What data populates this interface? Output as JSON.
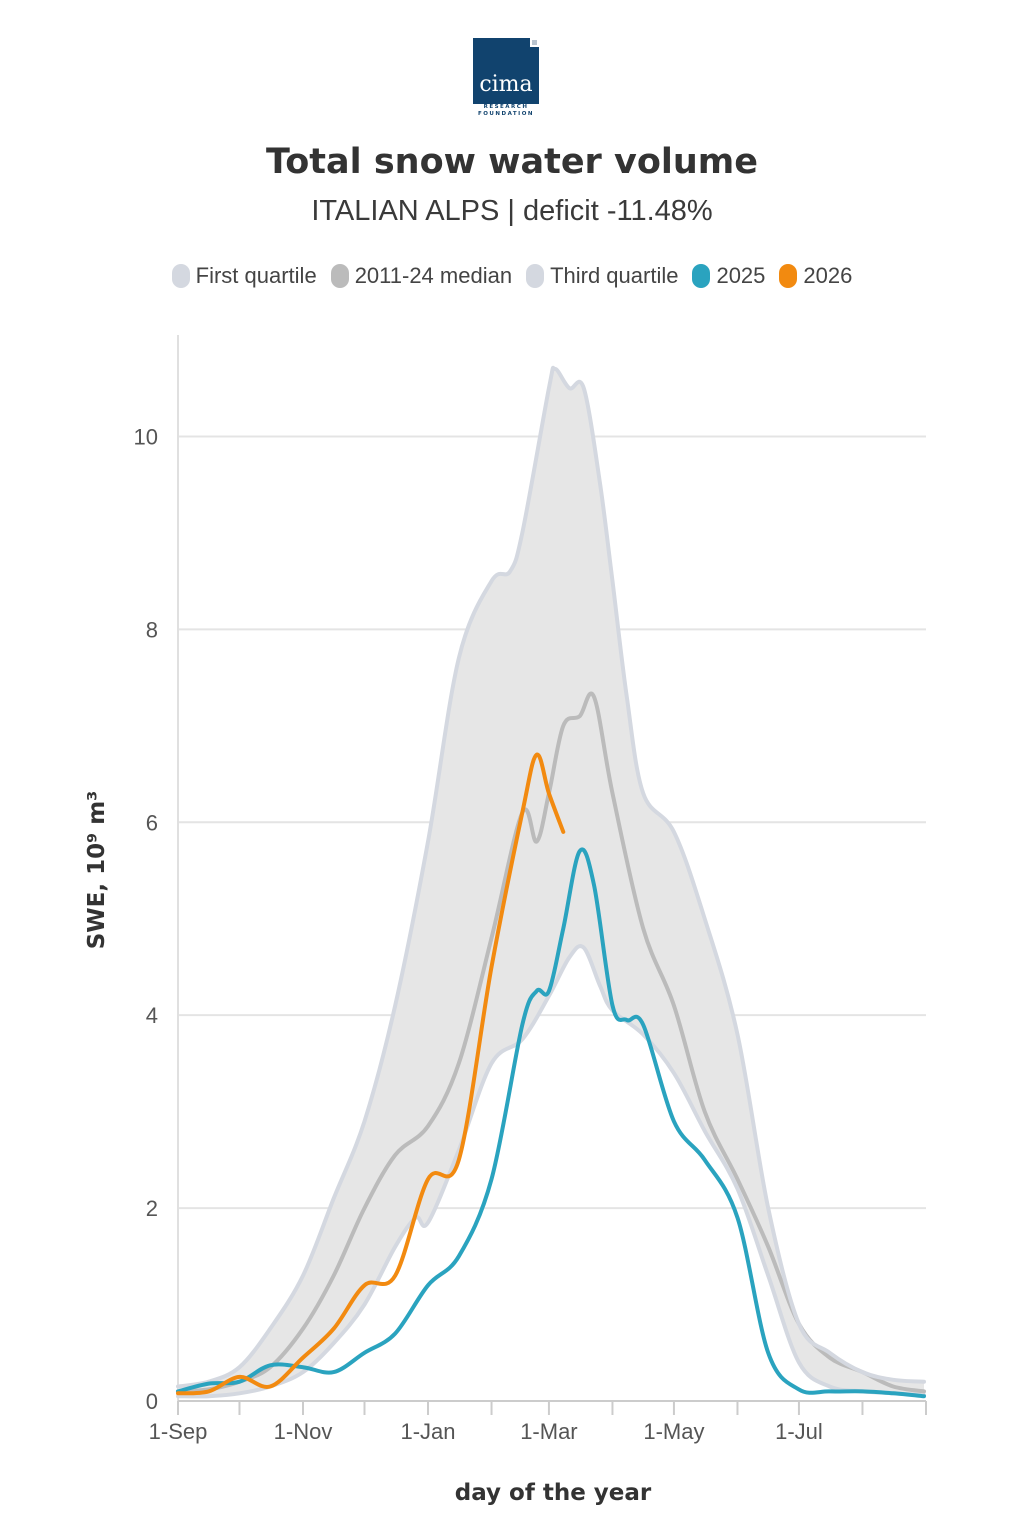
{
  "logo": {
    "brand": "cima",
    "sub": "RESEARCH\nFOUNDATION"
  },
  "header": {
    "title": "Total snow water volume",
    "subtitle": "ITALIAN ALPS | deficit -11.48%"
  },
  "colors": {
    "quartile": "#d4d8e0",
    "band": "#e6e6e6",
    "median": "#bbbbbb",
    "s2025": "#2aa3bf",
    "s2026": "#f28a10"
  },
  "legend": [
    {
      "label": "First quartile",
      "color": "#d4d8e0"
    },
    {
      "label": "2011-24 median",
      "color": "#bbbbbb"
    },
    {
      "label": "Third quartile",
      "color": "#d4d8e0"
    },
    {
      "label": "2025",
      "color": "#2aa3bf"
    },
    {
      "label": "2026",
      "color": "#f28a10"
    }
  ],
  "chart_data": {
    "type": "line",
    "title": "Total snow water volume",
    "subtitle": "ITALIAN ALPS | deficit -11.48%",
    "xlabel": "day of the year",
    "ylabel": "SWE, 10⁹ m³",
    "ylim": [
      0,
      11
    ],
    "yticks": [
      0,
      2,
      4,
      6,
      8,
      10
    ],
    "xlim": [
      "1-Sep",
      "31-Aug"
    ],
    "xticks": [
      "1-Sep",
      "1-Nov",
      "1-Jan",
      "1-Mar",
      "1-May",
      "1-Jul"
    ],
    "grid": true,
    "legend_position": "top",
    "series": [
      {
        "name": "First quartile",
        "x": [
          "1-Sep",
          "16-Sep",
          "1-Oct",
          "16-Oct",
          "1-Nov",
          "16-Nov",
          "1-Dec",
          "16-Dec",
          "26-Dec",
          "1-Jan",
          "16-Jan",
          "1-Feb",
          "16-Feb",
          "1-Mar",
          "11-Mar",
          "18-Mar",
          "26-Mar",
          "1-Apr",
          "16-Apr",
          "1-May",
          "16-May",
          "1-Jun",
          "16-Jun",
          "1-Jul",
          "16-Jul",
          "1-Aug",
          "16-Aug",
          "31-Aug"
        ],
        "values": [
          0.05,
          0.05,
          0.08,
          0.15,
          0.3,
          0.6,
          1.0,
          1.6,
          1.9,
          1.85,
          2.6,
          3.5,
          3.75,
          4.2,
          4.6,
          4.7,
          4.3,
          4.05,
          3.8,
          3.4,
          2.8,
          2.2,
          1.3,
          0.4,
          0.15,
          0.1,
          0.08,
          0.06
        ]
      },
      {
        "name": "2011-24 median",
        "x": [
          "1-Sep",
          "16-Sep",
          "1-Oct",
          "16-Oct",
          "1-Nov",
          "16-Nov",
          "1-Dec",
          "16-Dec",
          "1-Jan",
          "16-Jan",
          "1-Feb",
          "16-Feb",
          "23-Feb",
          "1-Mar",
          "8-Mar",
          "16-Mar",
          "23-Mar",
          "1-Apr",
          "16-Apr",
          "1-May",
          "16-May",
          "1-Jun",
          "16-Jun",
          "1-Jul",
          "16-Jul",
          "1-Aug",
          "16-Aug",
          "31-Aug"
        ],
        "values": [
          0.1,
          0.12,
          0.2,
          0.35,
          0.75,
          1.3,
          2.0,
          2.55,
          2.85,
          3.5,
          4.8,
          6.1,
          5.8,
          6.3,
          7.0,
          7.1,
          7.3,
          6.3,
          4.9,
          4.1,
          3.0,
          2.3,
          1.6,
          0.8,
          0.45,
          0.3,
          0.15,
          0.1
        ]
      },
      {
        "name": "Third quartile",
        "x": [
          "1-Sep",
          "16-Sep",
          "1-Oct",
          "16-Oct",
          "1-Nov",
          "16-Nov",
          "1-Dec",
          "16-Dec",
          "1-Jan",
          "16-Jan",
          "1-Feb",
          "10-Feb",
          "16-Feb",
          "1-Mar",
          "4-Mar",
          "11-Mar",
          "18-Mar",
          "26-Mar",
          "1-Apr",
          "8-Apr",
          "16-Apr",
          "1-May",
          "16-May",
          "1-Jun",
          "16-Jun",
          "1-Jul",
          "16-Jul",
          "1-Aug",
          "16-Aug",
          "31-Aug"
        ],
        "values": [
          0.15,
          0.2,
          0.35,
          0.75,
          1.3,
          2.1,
          2.9,
          4.1,
          5.8,
          7.7,
          8.5,
          8.6,
          9.0,
          10.5,
          10.7,
          10.5,
          10.5,
          9.5,
          8.5,
          7.3,
          6.3,
          5.9,
          5.0,
          3.8,
          2.0,
          0.8,
          0.5,
          0.3,
          0.22,
          0.2
        ]
      },
      {
        "name": "2025",
        "x": [
          "1-Sep",
          "16-Sep",
          "1-Oct",
          "16-Oct",
          "1-Nov",
          "16-Nov",
          "1-Dec",
          "16-Dec",
          "1-Jan",
          "16-Jan",
          "1-Feb",
          "16-Feb",
          "23-Feb",
          "1-Mar",
          "8-Mar",
          "16-Mar",
          "23-Mar",
          "1-Apr",
          "8-Apr",
          "16-Apr",
          "1-May",
          "16-May",
          "1-Jun",
          "16-Jun",
          "1-Jul",
          "16-Jul",
          "1-Aug",
          "16-Aug",
          "31-Aug"
        ],
        "values": [
          0.1,
          0.18,
          0.2,
          0.37,
          0.35,
          0.3,
          0.5,
          0.7,
          1.2,
          1.5,
          2.3,
          3.9,
          4.25,
          4.25,
          4.9,
          5.7,
          5.35,
          4.1,
          3.95,
          3.9,
          2.9,
          2.5,
          1.9,
          0.5,
          0.12,
          0.1,
          0.1,
          0.08,
          0.05
        ]
      },
      {
        "name": "2026",
        "x": [
          "1-Sep",
          "16-Sep",
          "1-Oct",
          "16-Oct",
          "1-Nov",
          "16-Nov",
          "1-Dec",
          "16-Dec",
          "1-Jan",
          "16-Jan",
          "1-Feb",
          "16-Feb",
          "23-Feb",
          "1-Mar",
          "8-Mar"
        ],
        "values": [
          0.08,
          0.1,
          0.25,
          0.15,
          0.45,
          0.75,
          1.2,
          1.3,
          2.3,
          2.5,
          4.5,
          6.1,
          6.7,
          6.3,
          5.9
        ]
      }
    ]
  }
}
